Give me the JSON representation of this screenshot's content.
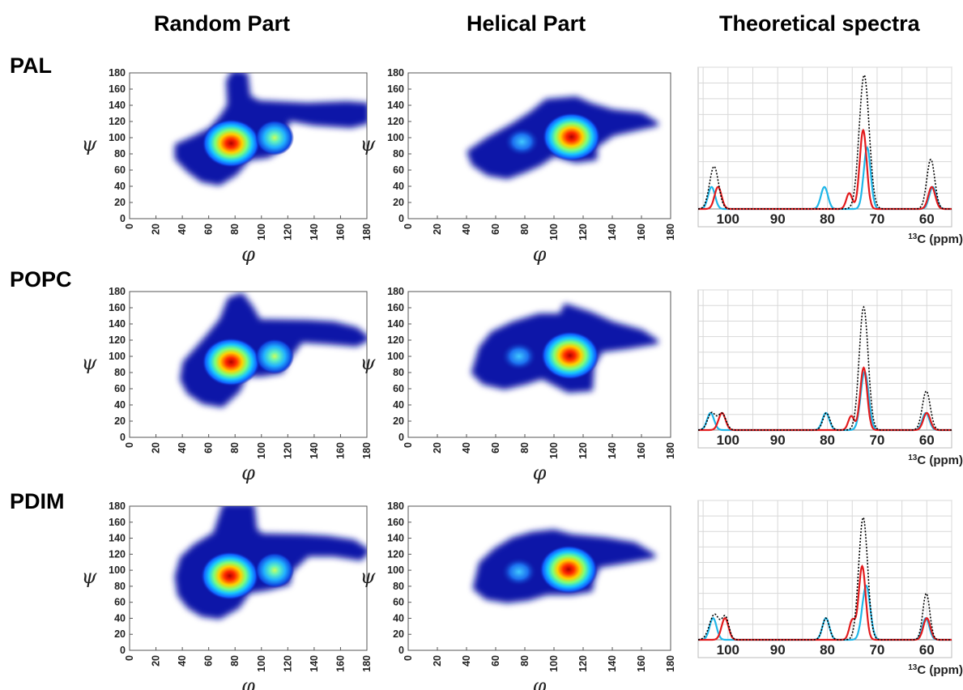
{
  "headers": [
    "Random Part",
    "Helical Part",
    "Theoretical spectra"
  ],
  "rows": [
    "PAL",
    "POPC",
    "PDIM"
  ],
  "chart_data": [
    {
      "type": "heatmap",
      "panel": "PAL - Random Part",
      "xlabel": "φ",
      "ylabel": "ψ",
      "xlim": [
        0,
        180
      ],
      "ylim": [
        0,
        180
      ],
      "xticks": [
        "0",
        "20",
        "40",
        "60",
        "80",
        "100",
        "120",
        "140",
        "160",
        "180"
      ],
      "yticks": [
        "0",
        "20",
        "40",
        "60",
        "80",
        "100",
        "120",
        "140",
        "160",
        "180"
      ],
      "region": [
        [
          68,
          44
        ],
        [
          55,
          48
        ],
        [
          45,
          60
        ],
        [
          36,
          75
        ],
        [
          36,
          90
        ],
        [
          50,
          100
        ],
        [
          62,
          110
        ],
        [
          70,
          125
        ],
        [
          76,
          140
        ],
        [
          75,
          170
        ],
        [
          79,
          180
        ],
        [
          88,
          178
        ],
        [
          90,
          150
        ],
        [
          98,
          143
        ],
        [
          135,
          140
        ],
        [
          165,
          142
        ],
        [
          180,
          140
        ],
        [
          180,
          120
        ],
        [
          168,
          115
        ],
        [
          140,
          118
        ],
        [
          120,
          124
        ],
        [
          115,
          88
        ],
        [
          105,
          78
        ],
        [
          90,
          75
        ],
        [
          80,
          56
        ]
      ],
      "hotspots": [
        {
          "phi": 77,
          "psi": 93,
          "level": "max"
        },
        {
          "phi": 110,
          "psi": 100,
          "level": "medium"
        }
      ]
    },
    {
      "type": "heatmap",
      "panel": "PAL - Helical Part",
      "xlabel": "φ",
      "ylabel": "ψ",
      "xlim": [
        0,
        180
      ],
      "ylim": [
        0,
        180
      ],
      "xticks": [
        "0",
        "20",
        "40",
        "60",
        "80",
        "100",
        "120",
        "140",
        "160",
        "180"
      ],
      "yticks": [
        "0",
        "20",
        "40",
        "60",
        "80",
        "100",
        "120",
        "140",
        "160",
        "180"
      ],
      "region": [
        [
          68,
          52
        ],
        [
          55,
          56
        ],
        [
          45,
          68
        ],
        [
          42,
          82
        ],
        [
          55,
          98
        ],
        [
          72,
          115
        ],
        [
          85,
          130
        ],
        [
          95,
          145
        ],
        [
          115,
          148
        ],
        [
          125,
          140
        ],
        [
          140,
          132
        ],
        [
          160,
          128
        ],
        [
          170,
          117
        ],
        [
          140,
          105
        ],
        [
          128,
          90
        ],
        [
          128,
          75
        ],
        [
          115,
          72
        ],
        [
          100,
          80
        ],
        [
          90,
          68
        ],
        [
          80,
          60
        ]
      ],
      "hotspots": [
        {
          "phi": 112,
          "psi": 101,
          "level": "max"
        },
        {
          "phi": 78,
          "psi": 95,
          "level": "low"
        }
      ]
    },
    {
      "type": "line",
      "panel": "PAL - Theoretical spectra",
      "xlabel": "13C (ppm)",
      "xlim": [
        106,
        55
      ],
      "ylim": [
        0,
        180
      ],
      "xticks": [
        100,
        90,
        80,
        70,
        60
      ],
      "series": [
        {
          "color": "#000000",
          "style": "dotted",
          "peaks": [
            [
              102.8,
              54,
              0.9
            ],
            [
              72.6,
              170,
              1.0
            ],
            [
              59.2,
              63,
              0.8
            ]
          ]
        },
        {
          "color": "#e31a1c",
          "style": "solid",
          "peaks": [
            [
              102.0,
              28,
              0.7
            ],
            [
              75.6,
              20,
              0.6
            ],
            [
              72.8,
              100,
              0.7
            ],
            [
              59.0,
              28,
              0.7
            ]
          ]
        },
        {
          "color": "#1fb6e8",
          "style": "solid",
          "peaks": [
            [
              103.3,
              28,
              0.7
            ],
            [
              80.6,
              28,
              0.7
            ],
            [
              72.0,
              78,
              0.7
            ],
            [
              58.8,
              28,
              0.7
            ]
          ]
        }
      ]
    },
    {
      "type": "heatmap",
      "panel": "POPC - Random Part",
      "xlabel": "φ",
      "ylabel": "ψ",
      "xlim": [
        0,
        180
      ],
      "ylim": [
        0,
        180
      ],
      "xticks": [
        "0",
        "20",
        "40",
        "60",
        "80",
        "100",
        "120",
        "140",
        "160",
        "180"
      ],
      "yticks": [
        "0",
        "20",
        "40",
        "60",
        "80",
        "100",
        "120",
        "140",
        "160",
        "180"
      ],
      "region": [
        [
          70,
          40
        ],
        [
          56,
          44
        ],
        [
          45,
          56
        ],
        [
          40,
          72
        ],
        [
          42,
          92
        ],
        [
          52,
          110
        ],
        [
          60,
          125
        ],
        [
          70,
          145
        ],
        [
          76,
          170
        ],
        [
          85,
          175
        ],
        [
          92,
          160
        ],
        [
          98,
          143
        ],
        [
          135,
          142
        ],
        [
          155,
          140
        ],
        [
          172,
          133
        ],
        [
          180,
          122
        ],
        [
          172,
          115
        ],
        [
          150,
          118
        ],
        [
          130,
          120
        ],
        [
          120,
          98
        ],
        [
          115,
          82
        ],
        [
          100,
          78
        ],
        [
          88,
          78
        ],
        [
          82,
          58
        ]
      ],
      "hotspots": [
        {
          "phi": 77,
          "psi": 93,
          "level": "max"
        },
        {
          "phi": 110,
          "psi": 100,
          "level": "medium"
        }
      ]
    },
    {
      "type": "heatmap",
      "panel": "POPC - Helical Part",
      "xlabel": "φ",
      "ylabel": "ψ",
      "xlim": [
        0,
        180
      ],
      "ylim": [
        0,
        180
      ],
      "xticks": [
        "0",
        "20",
        "40",
        "60",
        "80",
        "100",
        "120",
        "140",
        "160",
        "180"
      ],
      "yticks": [
        "0",
        "20",
        "40",
        "60",
        "80",
        "100",
        "120",
        "140",
        "160",
        "180"
      ],
      "region": [
        [
          66,
          62
        ],
        [
          52,
          68
        ],
        [
          45,
          80
        ],
        [
          50,
          110
        ],
        [
          58,
          128
        ],
        [
          72,
          140
        ],
        [
          90,
          150
        ],
        [
          105,
          150
        ],
        [
          108,
          162
        ],
        [
          125,
          152
        ],
        [
          140,
          140
        ],
        [
          160,
          130
        ],
        [
          170,
          118
        ],
        [
          150,
          112
        ],
        [
          132,
          108
        ],
        [
          126,
          88
        ],
        [
          125,
          60
        ],
        [
          110,
          58
        ],
        [
          92,
          75
        ],
        [
          80,
          68
        ]
      ],
      "hotspots": [
        {
          "phi": 111,
          "psi": 101,
          "level": "max"
        },
        {
          "phi": 76,
          "psi": 100,
          "level": "low"
        }
      ]
    },
    {
      "type": "line",
      "panel": "POPC - Theoretical spectra",
      "xlabel": "13C (ppm)",
      "xlim": [
        106,
        55
      ],
      "ylim": [
        0,
        180
      ],
      "xticks": [
        100,
        90,
        80,
        70,
        60
      ],
      "series": [
        {
          "color": "#000000",
          "style": "dotted",
          "peaks": [
            [
              103.3,
              22,
              0.8
            ],
            [
              101.2,
              21,
              0.8
            ],
            [
              80.2,
              22,
              0.7
            ],
            [
              72.7,
              158,
              0.9
            ],
            [
              60.1,
              50,
              0.8
            ]
          ]
        },
        {
          "color": "#e31a1c",
          "style": "solid",
          "peaks": [
            [
              101.2,
              22,
              0.7
            ],
            [
              75.2,
              18,
              0.6
            ],
            [
              72.7,
              80,
              0.7
            ],
            [
              60.0,
              22,
              0.7
            ]
          ]
        },
        {
          "color": "#1fb6e8",
          "style": "solid",
          "peaks": [
            [
              103.5,
              22,
              0.7
            ],
            [
              80.3,
              22,
              0.7
            ],
            [
              72.5,
              75,
              0.8
            ],
            [
              60.2,
              22,
              0.7
            ]
          ]
        }
      ]
    },
    {
      "type": "heatmap",
      "panel": "PDIM - Random Part",
      "xlabel": "φ",
      "ylabel": "ψ",
      "xlim": [
        0,
        180
      ],
      "ylim": [
        0,
        180
      ],
      "xticks": [
        "0",
        "20",
        "40",
        "60",
        "80",
        "100",
        "120",
        "140",
        "160",
        "180"
      ],
      "yticks": [
        "0",
        "20",
        "40",
        "60",
        "80",
        "100",
        "120",
        "140",
        "160",
        "180"
      ],
      "region": [
        [
          68,
          42
        ],
        [
          55,
          45
        ],
        [
          45,
          55
        ],
        [
          38,
          70
        ],
        [
          36,
          92
        ],
        [
          40,
          115
        ],
        [
          50,
          130
        ],
        [
          65,
          145
        ],
        [
          70,
          170
        ],
        [
          72,
          180
        ],
        [
          93,
          180
        ],
        [
          95,
          150
        ],
        [
          100,
          143
        ],
        [
          130,
          142
        ],
        [
          150,
          140
        ],
        [
          170,
          135
        ],
        [
          180,
          124
        ],
        [
          175,
          115
        ],
        [
          155,
          120
        ],
        [
          135,
          120
        ],
        [
          122,
          100
        ],
        [
          120,
          84
        ],
        [
          105,
          78
        ],
        [
          90,
          74
        ],
        [
          82,
          55
        ]
      ],
      "hotspots": [
        {
          "phi": 76,
          "psi": 93,
          "level": "max"
        },
        {
          "phi": 110,
          "psi": 100,
          "level": "medium"
        }
      ]
    },
    {
      "type": "heatmap",
      "panel": "PDIM - Helical Part",
      "xlabel": "φ",
      "ylabel": "ψ",
      "xlim": [
        0,
        180
      ],
      "ylim": [
        0,
        180
      ],
      "xticks": [
        "0",
        "20",
        "40",
        "60",
        "80",
        "100",
        "120",
        "140",
        "160",
        "180"
      ],
      "yticks": [
        "0",
        "20",
        "40",
        "60",
        "80",
        "100",
        "120",
        "140",
        "160",
        "180"
      ],
      "region": [
        [
          68,
          62
        ],
        [
          54,
          66
        ],
        [
          46,
          78
        ],
        [
          50,
          108
        ],
        [
          60,
          125
        ],
        [
          72,
          138
        ],
        [
          85,
          145
        ],
        [
          100,
          148
        ],
        [
          112,
          142
        ],
        [
          135,
          138
        ],
        [
          155,
          132
        ],
        [
          168,
          118
        ],
        [
          150,
          112
        ],
        [
          130,
          106
        ],
        [
          126,
          88
        ],
        [
          125,
          76
        ],
        [
          112,
          72
        ],
        [
          95,
          72
        ],
        [
          82,
          65
        ]
      ],
      "hotspots": [
        {
          "phi": 110,
          "psi": 101,
          "level": "max"
        },
        {
          "phi": 76,
          "psi": 98,
          "level": "low"
        }
      ]
    },
    {
      "type": "line",
      "panel": "PDIM - Theoretical spectra",
      "xlabel": "13C (ppm)",
      "xlim": [
        106,
        55
      ],
      "ylim": [
        0,
        180
      ],
      "xticks": [
        100,
        90,
        80,
        70,
        60
      ],
      "series": [
        {
          "color": "#000000",
          "style": "dotted",
          "peaks": [
            [
              102.7,
              33,
              1.0
            ],
            [
              100.5,
              28,
              0.7
            ],
            [
              80.3,
              28,
              0.7
            ],
            [
              72.8,
              158,
              0.9
            ],
            [
              60.1,
              60,
              0.7
            ]
          ]
        },
        {
          "color": "#e31a1c",
          "style": "solid",
          "peaks": [
            [
              100.6,
              28,
              0.7
            ],
            [
              75.0,
              25,
              0.6
            ],
            [
              73.0,
              95,
              0.7
            ],
            [
              60.0,
              28,
              0.7
            ]
          ]
        },
        {
          "color": "#1fb6e8",
          "style": "solid",
          "peaks": [
            [
              103.0,
              28,
              0.7
            ],
            [
              80.3,
              28,
              0.7
            ],
            [
              72.2,
              70,
              0.8
            ],
            [
              60.2,
              28,
              0.7
            ]
          ]
        }
      ]
    }
  ]
}
